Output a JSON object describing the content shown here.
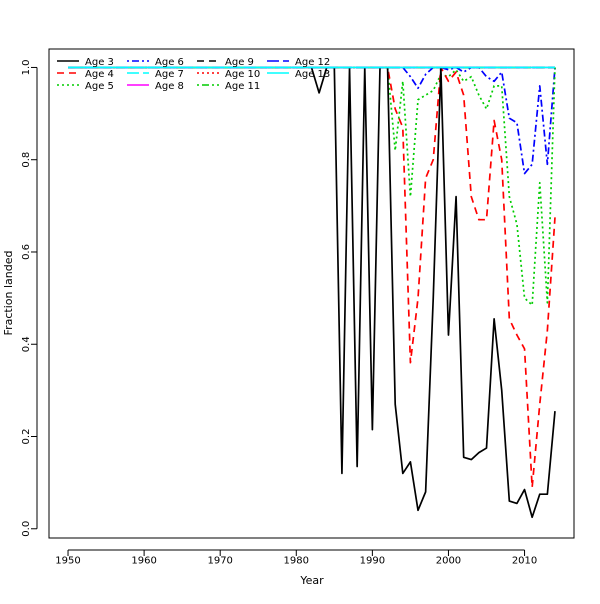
{
  "chart_data": {
    "type": "line",
    "title": "",
    "xlabel": "Year",
    "ylabel": "Fraction landed",
    "xlim": [
      1947.5,
      2016.5
    ],
    "ylim": [
      -0.02,
      1.04
    ],
    "x_ticks": [
      1950,
      1960,
      1970,
      1980,
      1990,
      2000,
      2010
    ],
    "y_ticks": [
      0.0,
      0.2,
      0.4,
      0.6,
      0.8,
      1.0
    ],
    "grid": false,
    "legend_position": "top-left",
    "x_start": 1950,
    "x_end": 2014,
    "series": [
      {
        "name": "Age 3",
        "color": "#000000",
        "dash": "solid",
        "x": [
          1950,
          1982,
          1983,
          1984,
          1985,
          1986,
          1987,
          1988,
          1989,
          1990,
          1991,
          1992,
          1993,
          1994,
          1995,
          1996,
          1997,
          1998,
          1999,
          2000,
          2001,
          2002,
          2003,
          2004,
          2005,
          2006,
          2007,
          2008,
          2009,
          2010,
          2011,
          2012,
          2013,
          2014
        ],
        "y": [
          1.0,
          1.0,
          0.945,
          1.0,
          1.0,
          0.12,
          1.0,
          0.135,
          1.0,
          0.215,
          1.0,
          1.0,
          0.27,
          0.12,
          0.145,
          0.04,
          0.08,
          0.5,
          1.0,
          0.42,
          0.72,
          0.155,
          0.15,
          0.165,
          0.175,
          0.455,
          0.3,
          0.06,
          0.055,
          0.085,
          0.025,
          0.075,
          0.075,
          0.255
        ]
      },
      {
        "name": "Age 4",
        "color": "#ff0000",
        "dash": "dashed",
        "x": [
          1950,
          1992,
          1993,
          1994,
          1995,
          1996,
          1997,
          1998,
          1999,
          2000,
          2001,
          2002,
          2003,
          2004,
          2005,
          2006,
          2007,
          2008,
          2009,
          2010,
          2011,
          2012,
          2013,
          2014
        ],
        "y": [
          1.0,
          1.0,
          0.91,
          0.87,
          0.36,
          0.5,
          0.76,
          0.8,
          1.0,
          0.97,
          0.99,
          0.94,
          0.72,
          0.67,
          0.67,
          0.885,
          0.8,
          0.455,
          0.42,
          0.39,
          0.09,
          0.27,
          0.43,
          0.675
        ]
      },
      {
        "name": "Age 5",
        "color": "#00cc00",
        "dash": "dotted",
        "x": [
          1950,
          1992,
          1993,
          1994,
          1995,
          1996,
          1997,
          1998,
          1999,
          2000,
          2001,
          2002,
          2003,
          2004,
          2005,
          2006,
          2007,
          2008,
          2009,
          2010,
          2011,
          2012,
          2013,
          2014
        ],
        "y": [
          1.0,
          1.0,
          0.82,
          0.97,
          0.72,
          0.93,
          0.94,
          0.95,
          0.985,
          0.98,
          0.995,
          0.97,
          0.98,
          0.94,
          0.91,
          0.96,
          0.96,
          0.72,
          0.66,
          0.5,
          0.485,
          0.75,
          0.49,
          1.0
        ]
      },
      {
        "name": "Age 6",
        "color": "#0000ff",
        "dash": "dashdot",
        "x": [
          1950,
          1994,
          1995,
          1996,
          1997,
          1998,
          1999,
          2000,
          2001,
          2002,
          2003,
          2004,
          2005,
          2006,
          2007,
          2008,
          2009,
          2010,
          2011,
          2012,
          2013,
          2014
        ],
        "y": [
          1.0,
          1.0,
          0.98,
          0.955,
          0.985,
          1.0,
          1.0,
          0.995,
          1.0,
          0.99,
          1.0,
          1.0,
          0.98,
          0.97,
          0.99,
          0.89,
          0.88,
          0.77,
          0.79,
          0.96,
          0.79,
          1.0
        ]
      },
      {
        "name": "Age 7",
        "color": "#00ffff",
        "dash": "longdash",
        "x": [
          1950,
          2014
        ],
        "y": [
          1.0,
          1.0
        ]
      },
      {
        "name": "Age 8",
        "color": "#ff00ff",
        "dash": "solid",
        "x": [
          1950,
          2014
        ],
        "y": [
          1.0,
          1.0
        ]
      },
      {
        "name": "Age 9",
        "color": "#000000",
        "dash": "dashed",
        "x": [
          1950,
          2014
        ],
        "y": [
          1.0,
          1.0
        ]
      },
      {
        "name": "Age 10",
        "color": "#ff0000",
        "dash": "dotted",
        "x": [
          1950,
          2014
        ],
        "y": [
          1.0,
          1.0
        ]
      },
      {
        "name": "Age 11",
        "color": "#00cc00",
        "dash": "dashdot",
        "x": [
          1950,
          2014
        ],
        "y": [
          1.0,
          1.0
        ]
      },
      {
        "name": "Age 12",
        "color": "#0000ff",
        "dash": "longdash",
        "x": [
          1950,
          2014
        ],
        "y": [
          1.0,
          1.0
        ]
      },
      {
        "name": "Age 13",
        "color": "#00ffff",
        "dash": "solid",
        "x": [
          1950,
          2014
        ],
        "y": [
          1.0,
          1.0
        ]
      }
    ]
  }
}
